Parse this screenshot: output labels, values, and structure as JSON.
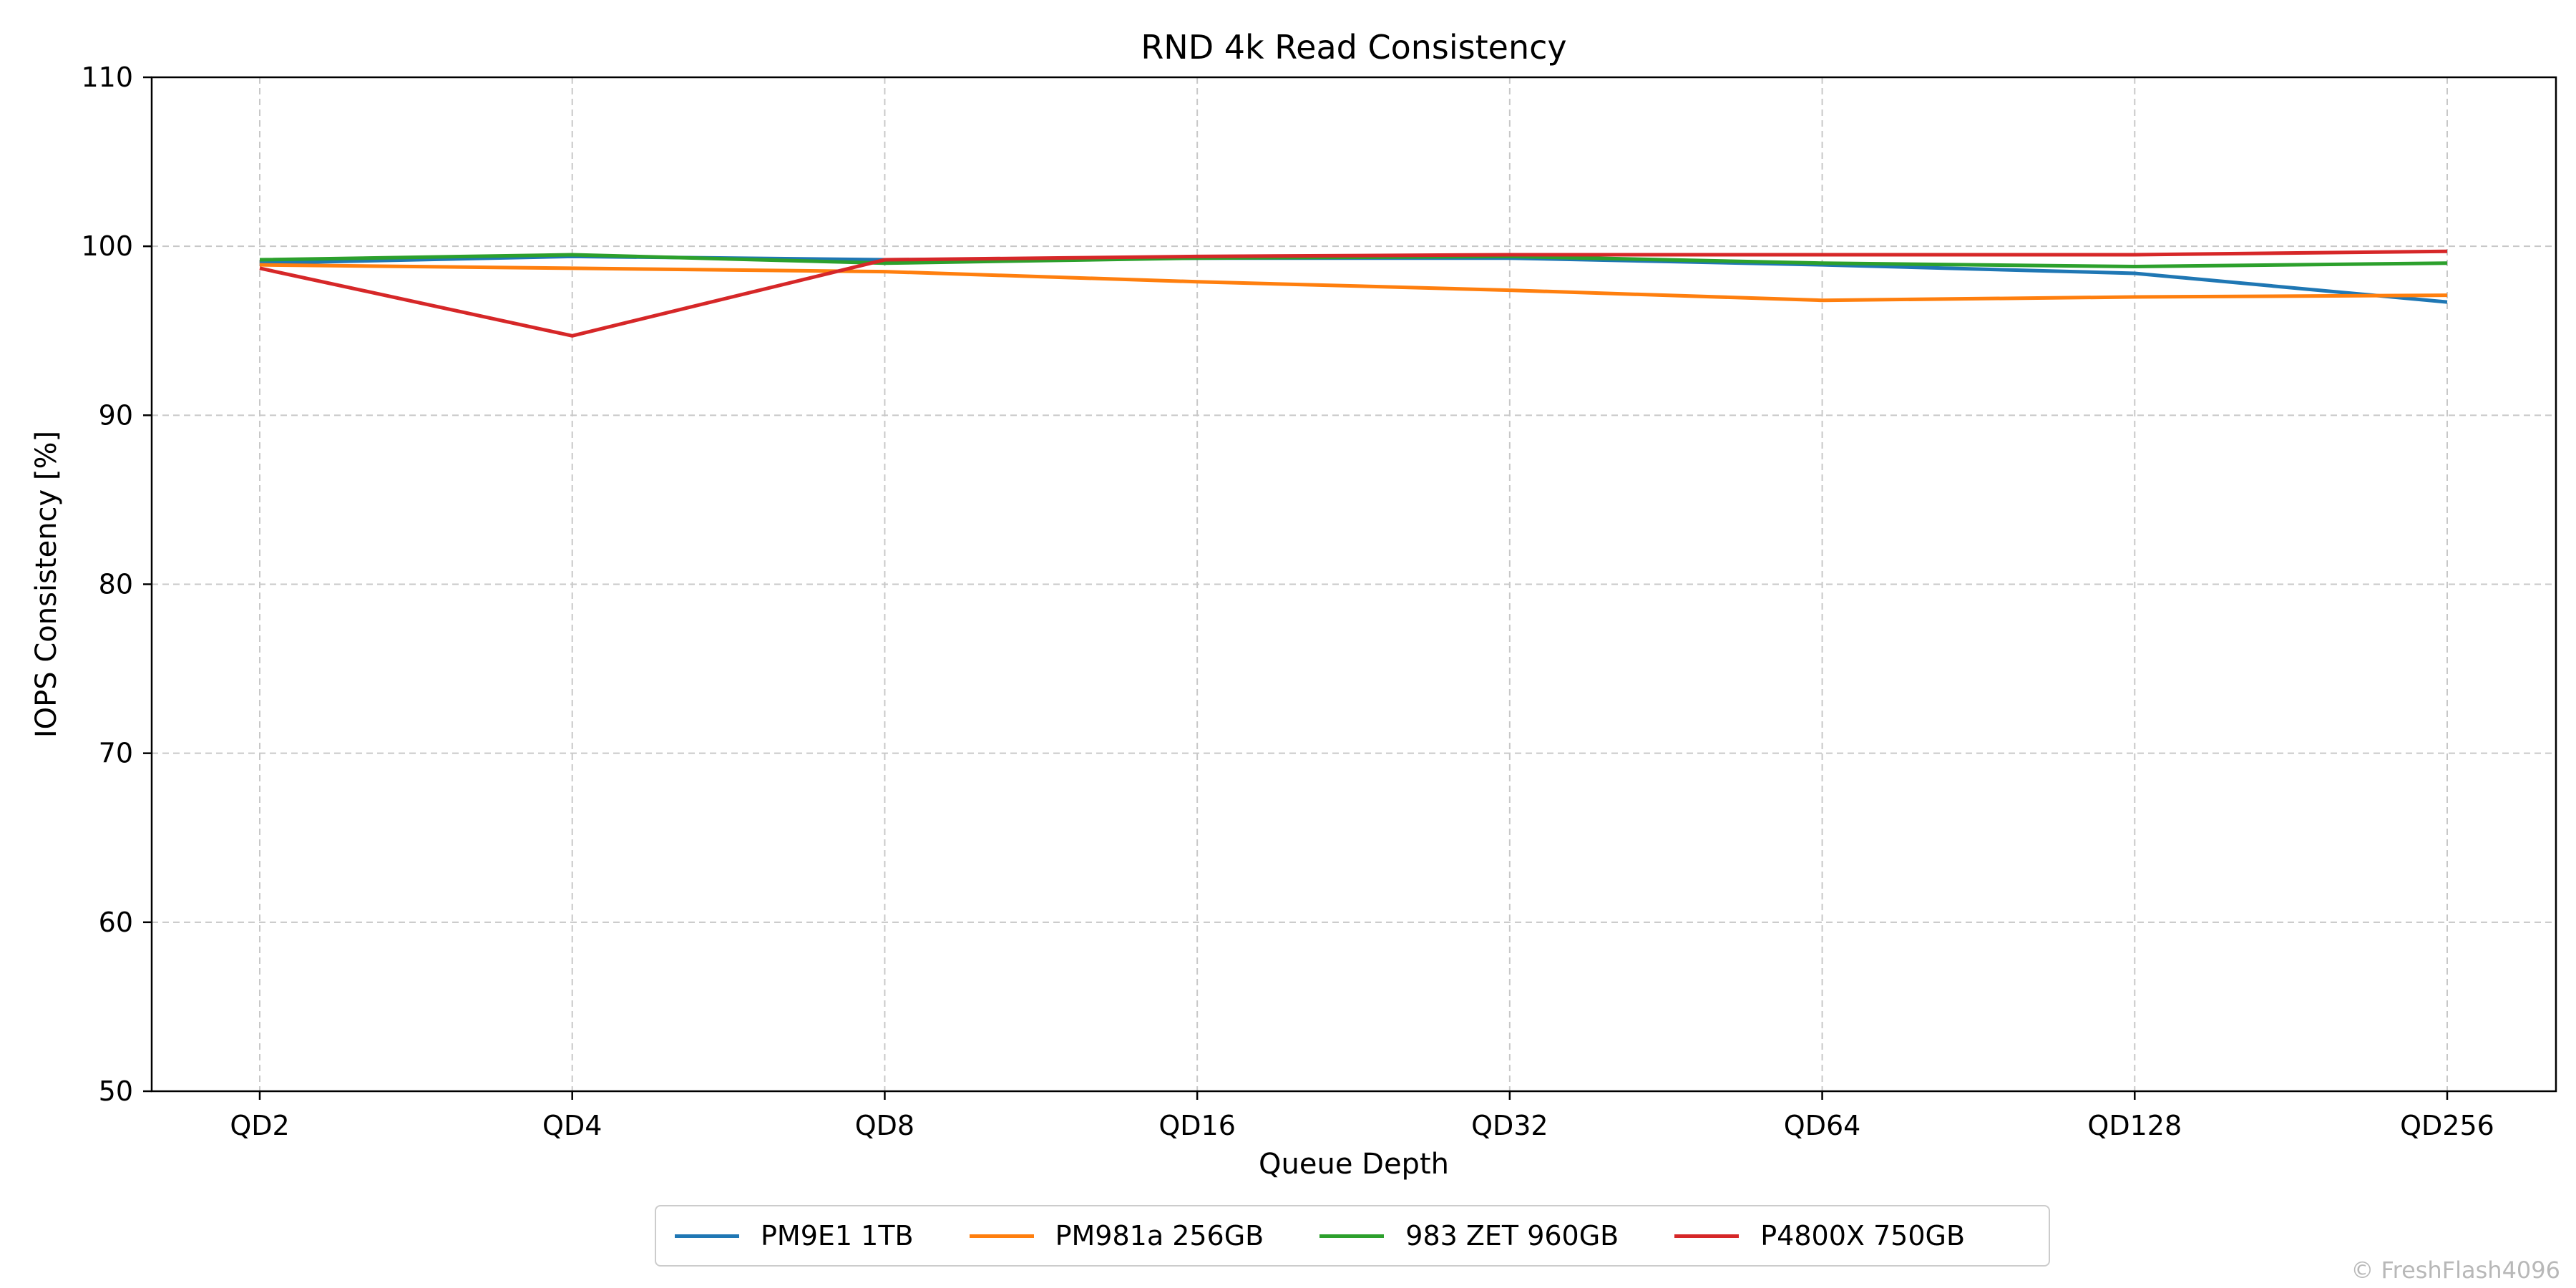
{
  "chart_data": {
    "type": "line",
    "title": "RND 4k Read Consistency",
    "xlabel": "Queue Depth",
    "ylabel": "IOPS Consistency [%]",
    "categories": [
      "QD2",
      "QD4",
      "QD8",
      "QD16",
      "QD32",
      "QD64",
      "QD128",
      "QD256"
    ],
    "ylim": [
      50,
      110
    ],
    "yticks": [
      50,
      60,
      70,
      80,
      90,
      100,
      110
    ],
    "grid": true,
    "legend_position": "bottom-center",
    "series": [
      {
        "name": "PM9E1 1TB",
        "color": "#1f77b4",
        "values": [
          99.0,
          99.4,
          99.2,
          99.3,
          99.3,
          98.9,
          98.4,
          96.7
        ]
      },
      {
        "name": "PM981a 256GB",
        "color": "#ff7f0e",
        "values": [
          98.9,
          98.7,
          98.5,
          97.9,
          97.4,
          96.8,
          97.0,
          97.1
        ]
      },
      {
        "name": "983 ZET 960GB",
        "color": "#2ca02c",
        "values": [
          99.2,
          99.5,
          99.0,
          99.3,
          99.4,
          99.0,
          98.8,
          99.0
        ]
      },
      {
        "name": "P4800X 750GB",
        "color": "#d62728",
        "values": [
          98.7,
          94.7,
          99.2,
          99.4,
          99.5,
          99.5,
          99.5,
          99.7
        ]
      }
    ]
  },
  "watermark": "© FreshFlash4096"
}
